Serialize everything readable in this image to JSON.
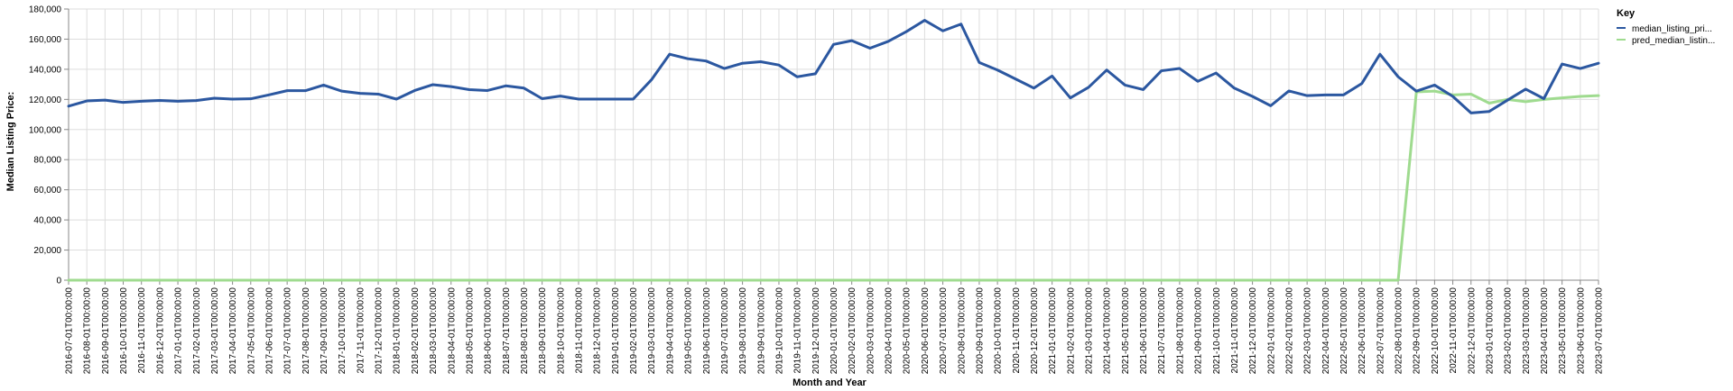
{
  "chart_data": {
    "type": "line",
    "xlabel": "Month and Year",
    "ylabel": "Median Listing Price:",
    "ylim": [
      0,
      180000
    ],
    "y_ticks": [
      0,
      20000,
      40000,
      60000,
      80000,
      100000,
      120000,
      140000,
      160000,
      180000
    ],
    "y_tick_labels": [
      "0",
      "20,000",
      "40,000",
      "60,000",
      "80,000",
      "100,000",
      "120,000",
      "140,000",
      "160,000",
      "180,000"
    ],
    "grid": true,
    "legend": {
      "title": "Key",
      "position": "top-right"
    },
    "x": [
      "2016-07-01T00:00:00",
      "2016-08-01T00:00:00",
      "2016-09-01T00:00:00",
      "2016-10-01T00:00:00",
      "2016-11-01T00:00:00",
      "2016-12-01T00:00:00",
      "2017-01-01T00:00:00",
      "2017-02-01T00:00:00",
      "2017-03-01T00:00:00",
      "2017-04-01T00:00:00",
      "2017-05-01T00:00:00",
      "2017-06-01T00:00:00",
      "2017-07-01T00:00:00",
      "2017-08-01T00:00:00",
      "2017-09-01T00:00:00",
      "2017-10-01T00:00:00",
      "2017-11-01T00:00:00",
      "2017-12-01T00:00:00",
      "2018-01-01T00:00:00",
      "2018-02-01T00:00:00",
      "2018-03-01T00:00:00",
      "2018-04-01T00:00:00",
      "2018-05-01T00:00:00",
      "2018-06-01T00:00:00",
      "2018-07-01T00:00:00",
      "2018-08-01T00:00:00",
      "2018-09-01T00:00:00",
      "2018-10-01T00:00:00",
      "2018-11-01T00:00:00",
      "2018-12-01T00:00:00",
      "2019-01-01T00:00:00",
      "2019-02-01T00:00:00",
      "2019-03-01T00:00:00",
      "2019-04-01T00:00:00",
      "2019-05-01T00:00:00",
      "2019-06-01T00:00:00",
      "2019-07-01T00:00:00",
      "2019-08-01T00:00:00",
      "2019-09-01T00:00:00",
      "2019-10-01T00:00:00",
      "2019-11-01T00:00:00",
      "2019-12-01T00:00:00",
      "2020-01-01T00:00:00",
      "2020-02-01T00:00:00",
      "2020-03-01T00:00:00",
      "2020-04-01T00:00:00",
      "2020-05-01T00:00:00",
      "2020-06-01T00:00:00",
      "2020-07-01T00:00:00",
      "2020-08-01T00:00:00",
      "2020-09-01T00:00:00",
      "2020-10-01T00:00:00",
      "2020-11-01T00:00:00",
      "2020-12-01T00:00:00",
      "2021-01-01T00:00:00",
      "2021-02-01T00:00:00",
      "2021-03-01T00:00:00",
      "2021-04-01T00:00:00",
      "2021-05-01T00:00:00",
      "2021-06-01T00:00:00",
      "2021-07-01T00:00:00",
      "2021-08-01T00:00:00",
      "2021-09-01T00:00:00",
      "2021-10-01T00:00:00",
      "2021-11-01T00:00:00",
      "2021-12-01T00:00:00",
      "2022-01-01T00:00:00",
      "2022-02-01T00:00:00",
      "2022-03-01T00:00:00",
      "2022-04-01T00:00:00",
      "2022-05-01T00:00:00",
      "2022-06-01T00:00:00",
      "2022-07-01T00:00:00",
      "2022-08-01T00:00:00",
      "2022-09-01T00:00:00",
      "2022-10-01T00:00:00",
      "2022-11-01T00:00:00",
      "2022-12-01T00:00:00",
      "2023-01-01T00:00:00",
      "2023-02-01T00:00:00",
      "2023-03-01T00:00:00",
      "2023-04-01T00:00:00",
      "2023-05-01T00:00:00",
      "2023-06-01T00:00:00",
      "2023-07-01T00:00:00"
    ],
    "series": [
      {
        "name": "median_listing_pri...",
        "color": "#2b57a0",
        "values": [
          115500,
          119000,
          119500,
          118000,
          118800,
          119300,
          118800,
          119200,
          120800,
          120200,
          120400,
          123000,
          125800,
          125800,
          129500,
          125500,
          124000,
          123500,
          120200,
          125900,
          129800,
          128500,
          126500,
          125900,
          129000,
          127500,
          120500,
          122200,
          120200,
          120200,
          120200,
          120200,
          133000,
          150000,
          147000,
          145500,
          140500,
          144000,
          145000,
          142800,
          135000,
          137000,
          156500,
          159000,
          154000,
          158500,
          165000,
          172500,
          165500,
          170000,
          144500,
          139500,
          133500,
          127500,
          135500,
          121000,
          128000,
          139500,
          129500,
          126500,
          139000,
          140500,
          132000,
          137500,
          127500,
          122000,
          115800,
          125600,
          122500,
          123000,
          123000,
          130500,
          150000,
          135000,
          125500,
          129500,
          122000,
          111000,
          112000,
          119500,
          126800,
          120500,
          143500,
          140500,
          144000
        ]
      },
      {
        "name": "pred_median_listin...",
        "color": "#9fdb8f",
        "values": [
          0,
          0,
          0,
          0,
          0,
          0,
          0,
          0,
          0,
          0,
          0,
          0,
          0,
          0,
          0,
          0,
          0,
          0,
          0,
          0,
          0,
          0,
          0,
          0,
          0,
          0,
          0,
          0,
          0,
          0,
          0,
          0,
          0,
          0,
          0,
          0,
          0,
          0,
          0,
          0,
          0,
          0,
          0,
          0,
          0,
          0,
          0,
          0,
          0,
          0,
          0,
          0,
          0,
          0,
          0,
          0,
          0,
          0,
          0,
          0,
          0,
          0,
          0,
          0,
          0,
          0,
          0,
          0,
          0,
          0,
          0,
          0,
          0,
          0,
          125000,
          125500,
          123000,
          123500,
          117500,
          120000,
          118500,
          120000,
          121000,
          122000,
          122500
        ]
      }
    ]
  }
}
